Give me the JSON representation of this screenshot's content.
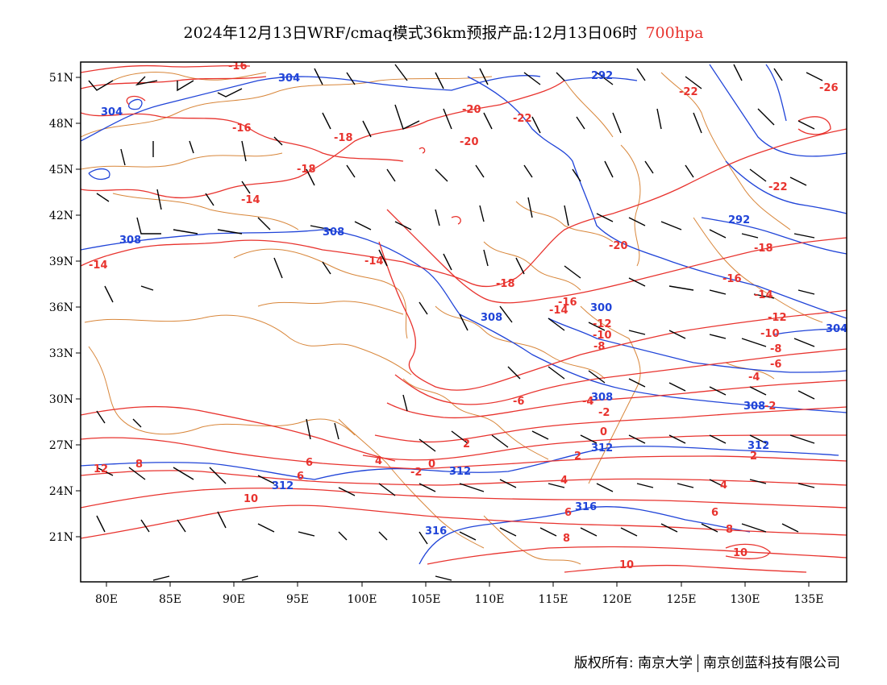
{
  "title": {
    "main": "2024年12月13日WRF/cmaq模式36km预报产品:12月13日06时",
    "level": "700hpa"
  },
  "axes": {
    "x_ticks": [
      "80E",
      "85E",
      "90E",
      "95E",
      "100E",
      "105E",
      "110E",
      "115E",
      "120E",
      "125E",
      "130E",
      "135E"
    ],
    "y_ticks": [
      "51N",
      "48N",
      "45N",
      "42N",
      "39N",
      "36N",
      "33N",
      "30N",
      "27N",
      "24N",
      "21N"
    ]
  },
  "temperature_labels": [
    "-16",
    "-16",
    "-18",
    "-18",
    "-14",
    "-14",
    "-14",
    "-20",
    "-20",
    "-22",
    "-22",
    "-22",
    "-26",
    "-20",
    "-18",
    "-18",
    "-16",
    "-16",
    "-14",
    "-14",
    "-12",
    "-12",
    "-10",
    "-10",
    "-8",
    "-8",
    "-6",
    "-6",
    "-4",
    "-4",
    "-2",
    "-2",
    "-2",
    "0",
    "0",
    "2",
    "2",
    "2",
    "4",
    "4",
    "4",
    "6",
    "6",
    "6",
    "6",
    "8",
    "8",
    "8",
    "10",
    "10",
    "10",
    "12"
  ],
  "height_labels": [
    "304",
    "304",
    "292",
    "308",
    "308",
    "292",
    "308",
    "300",
    "308",
    "308",
    "312",
    "312",
    "312",
    "316",
    "316",
    "312",
    "304"
  ],
  "colors": {
    "temperature": "#e8332e",
    "height": "#2044d8",
    "boundary": "#d8863a",
    "wind": "#000000",
    "level_text": "#e8332e"
  },
  "copyright": {
    "left": "版权所有: 南京大学",
    "right": "南京创蓝科技有限公司"
  }
}
